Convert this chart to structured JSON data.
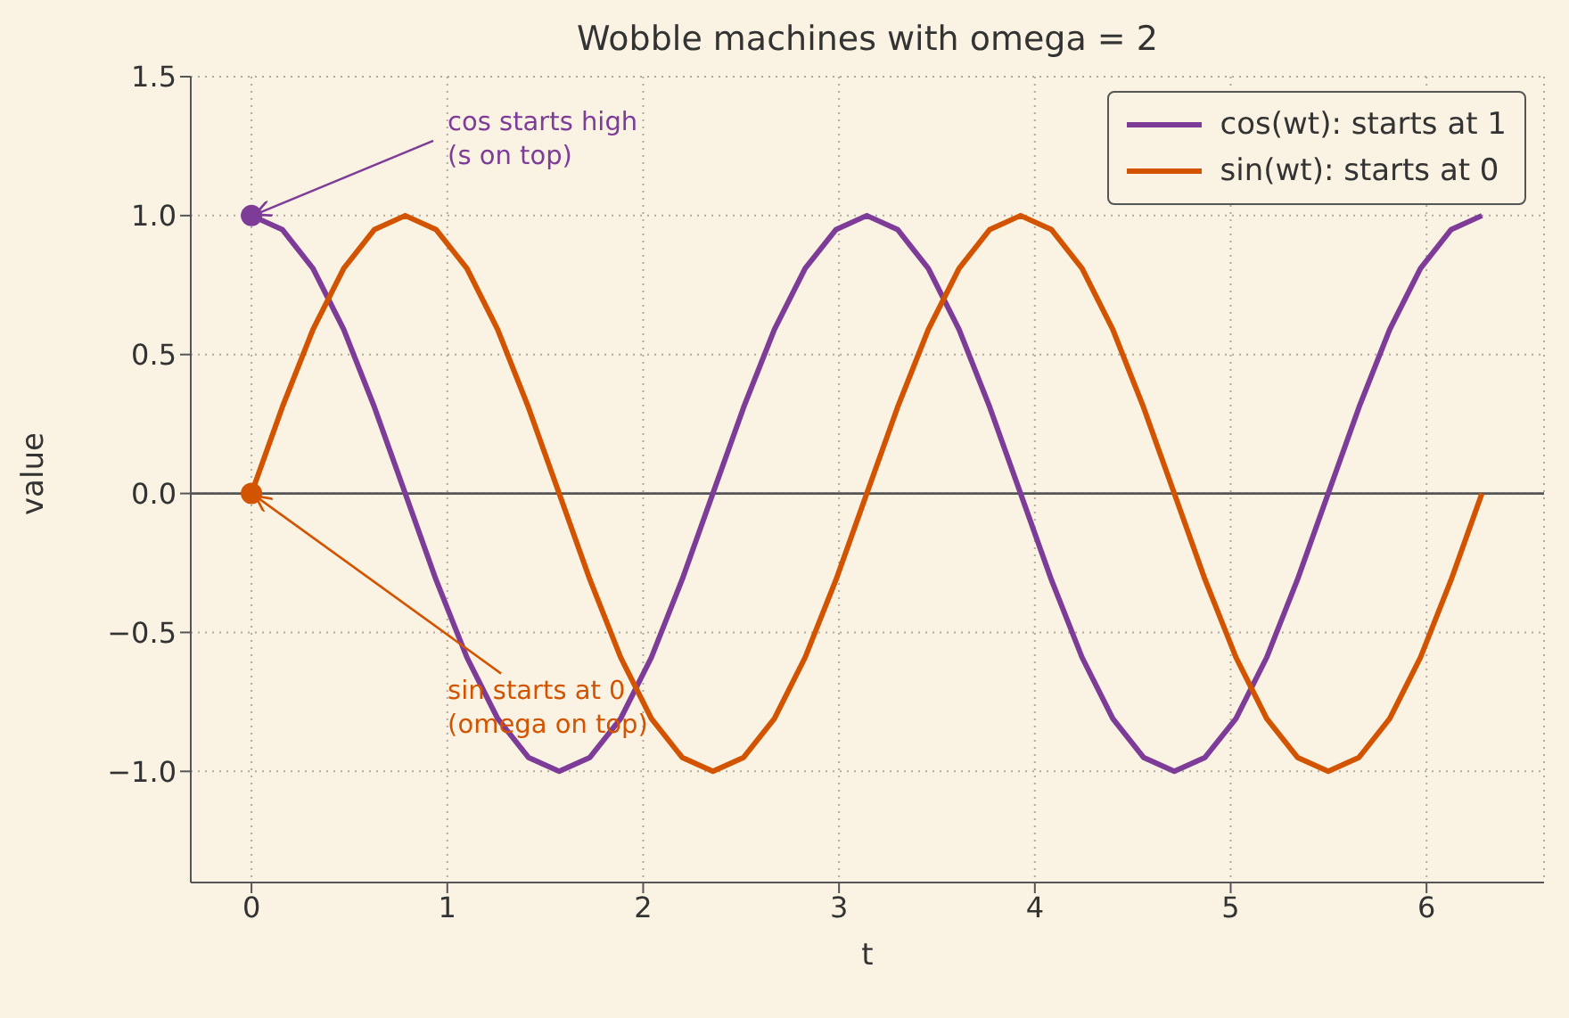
{
  "chart_data": {
    "type": "line",
    "title": "Wobble machines with omega = 2",
    "xlabel": "t",
    "ylabel": "value",
    "x": [
      0,
      0.157,
      0.314,
      0.471,
      0.628,
      0.785,
      0.942,
      1.1,
      1.257,
      1.414,
      1.571,
      1.728,
      1.885,
      2.042,
      2.199,
      2.356,
      2.513,
      2.67,
      2.827,
      2.985,
      3.142,
      3.299,
      3.456,
      3.613,
      3.77,
      3.927,
      4.084,
      4.241,
      4.398,
      4.555,
      4.712,
      4.869,
      5.027,
      5.184,
      5.341,
      5.498,
      5.655,
      5.812,
      5.969,
      6.126,
      6.283
    ],
    "series": [
      {
        "name": "cos(wt): starts at 1",
        "color": "#7d3c98",
        "values": [
          1,
          0.95,
          0.81,
          0.59,
          0.31,
          0,
          -0.31,
          -0.59,
          -0.81,
          -0.95,
          -1,
          -0.95,
          -0.81,
          -0.59,
          -0.31,
          0,
          0.31,
          0.59,
          0.81,
          0.95,
          1,
          0.95,
          0.81,
          0.59,
          0.31,
          0,
          -0.31,
          -0.59,
          -0.81,
          -0.95,
          -1,
          -0.95,
          -0.81,
          -0.59,
          -0.31,
          0,
          0.31,
          0.59,
          0.81,
          0.95,
          1
        ]
      },
      {
        "name": "sin(wt): starts at 0",
        "color": "#d35400",
        "values": [
          0,
          0.31,
          0.59,
          0.81,
          0.95,
          1,
          0.95,
          0.81,
          0.59,
          0.31,
          0,
          -0.31,
          -0.59,
          -0.81,
          -0.95,
          -1,
          -0.95,
          -0.81,
          -0.59,
          -0.31,
          0,
          0.31,
          0.59,
          0.81,
          0.95,
          1,
          0.95,
          0.81,
          0.59,
          0.31,
          0,
          -0.31,
          -0.59,
          -0.81,
          -0.95,
          -1,
          -0.95,
          -0.81,
          -0.59,
          -0.31,
          0
        ]
      },
      {
        "type": "scatter",
        "x": [
          0
        ],
        "color": "#7d3c98",
        "values": [
          1
        ],
        "marker": "circle"
      },
      {
        "type": "scatter",
        "x": [
          0
        ],
        "color": "#d35400",
        "values": [
          0
        ],
        "marker": "circle"
      }
    ],
    "xlim": [
      -0.31,
      6.6
    ],
    "xticks": [
      0,
      1,
      2,
      3,
      4,
      5,
      6
    ],
    "ylim": [
      -1.4,
      1.5
    ],
    "yticks": [
      {
        "value": -1,
        "label": "−1.0"
      },
      {
        "value": -0.5,
        "label": "−0.5"
      },
      {
        "value": 0,
        "label": "0.0"
      },
      {
        "value": 0.5,
        "label": "0.5"
      },
      {
        "value": 1,
        "label": "1.0"
      },
      {
        "value": 1.5,
        "label": "1.5"
      }
    ],
    "ref_lines": [
      {
        "axis": "y",
        "value": 0,
        "color": "#555555"
      }
    ],
    "annotations": [
      {
        "text": "cos starts high\n(s on top)",
        "x": 0,
        "y": 1
      },
      {
        "text": "sin starts at 0\n(omega on top)",
        "x": 0,
        "y": 0
      }
    ],
    "grid": true,
    "legend": "top right",
    "marker": "none",
    "line_style": "solid"
  }
}
